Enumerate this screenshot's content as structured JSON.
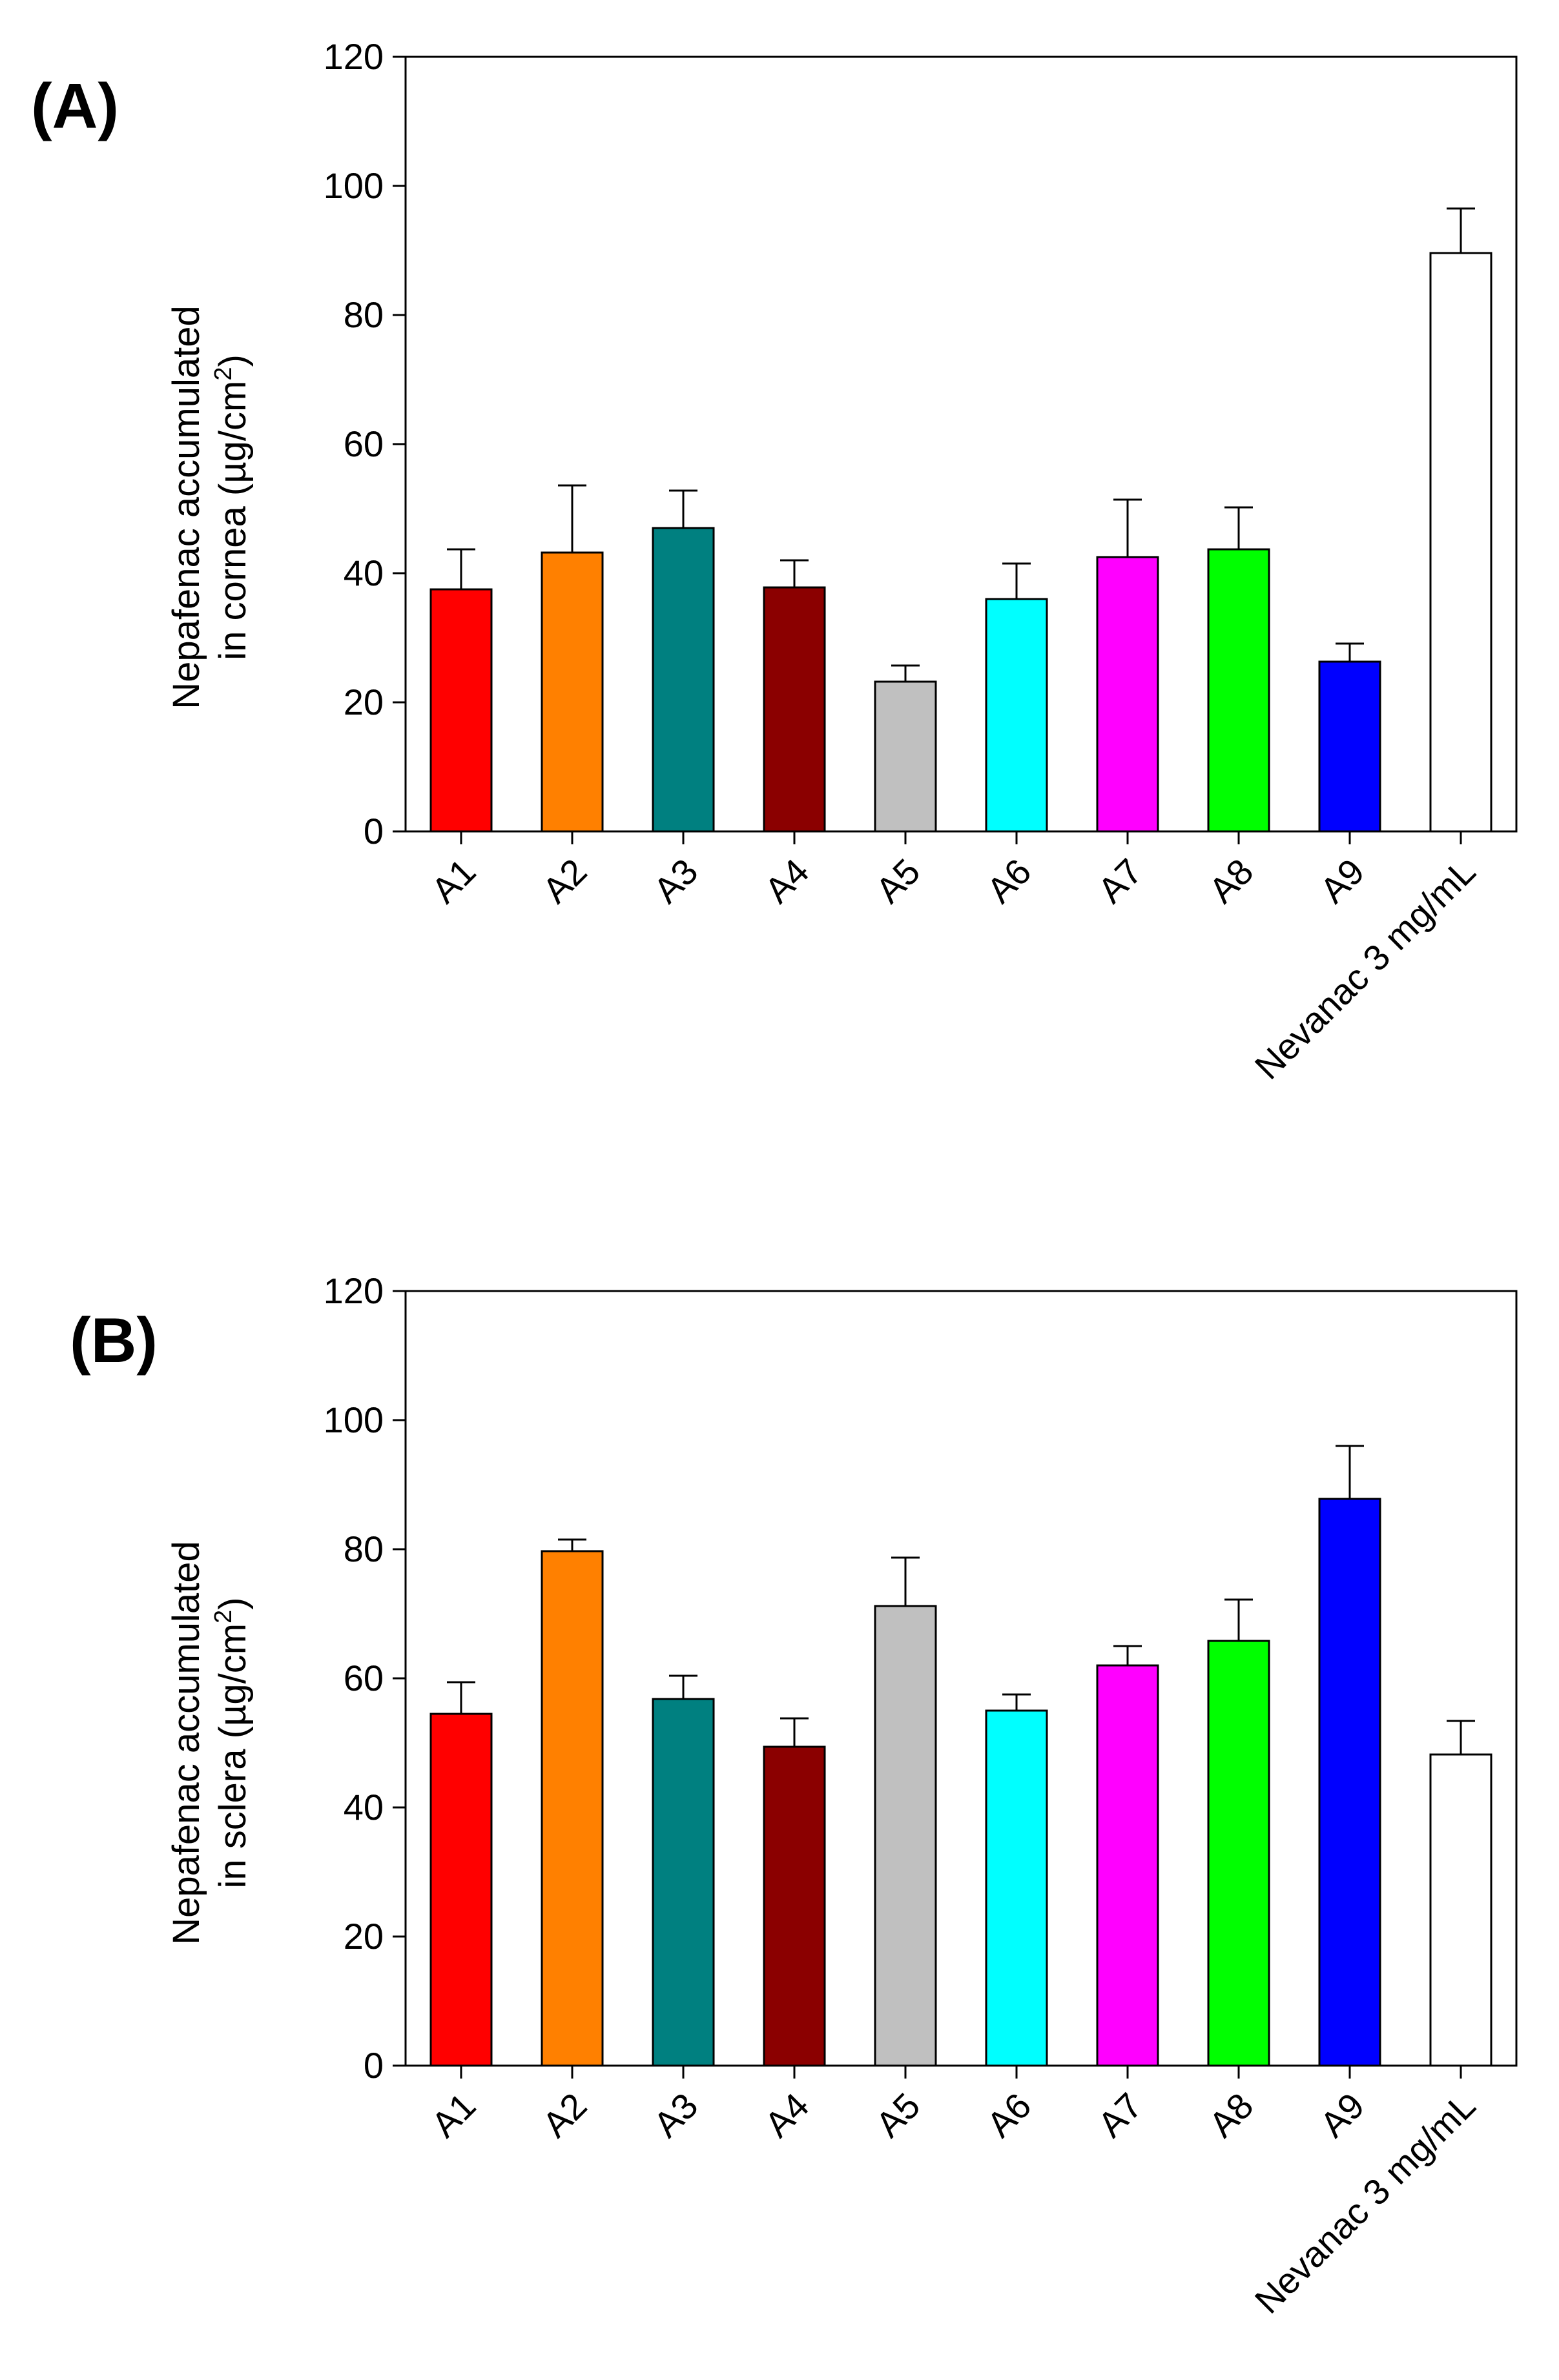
{
  "chart_data": [
    {
      "type": "bar",
      "panel_label": "(A)",
      "ylabel_line1": "Nepafenac accumulated",
      "ylabel_line2_prefix": "in cornea (µg/cm",
      "ylabel_sup": "2",
      "ylabel_line2_suffix": ")",
      "ylim": [
        0,
        120
      ],
      "yticks": [
        0,
        20,
        40,
        60,
        80,
        100,
        120
      ],
      "categories": [
        "A1",
        "A2",
        "A3",
        "A4",
        "A5",
        "A6",
        "A7",
        "A8",
        "A9",
        "Nevanac 3 mg/mL"
      ],
      "values": [
        37.5,
        43.2,
        47.0,
        37.8,
        23.2,
        36.0,
        42.5,
        43.7,
        26.3,
        89.6
      ],
      "errors": [
        6.2,
        10.4,
        5.8,
        4.2,
        2.5,
        5.5,
        8.9,
        6.5,
        2.8,
        6.9
      ],
      "colors": [
        "#ff0000",
        "#ff8000",
        "#008080",
        "#8b0000",
        "#c0c0c0",
        "#00ffff",
        "#ff00ff",
        "#00ff00",
        "#0000ff",
        "#ffffff"
      ],
      "grid": false,
      "legend": "none"
    },
    {
      "type": "bar",
      "panel_label": "(B)",
      "ylabel_line1": "Nepafenac accumulated",
      "ylabel_line2_prefix": "in sclera (µg/cm",
      "ylabel_sup": "2",
      "ylabel_line2_suffix": ")",
      "ylim": [
        0,
        120
      ],
      "yticks": [
        0,
        20,
        40,
        60,
        80,
        100,
        120
      ],
      "categories": [
        "A1",
        "A2",
        "A3",
        "A4",
        "A5",
        "A6",
        "A7",
        "A8",
        "A9",
        "Nevanac 3 mg/mL"
      ],
      "values": [
        54.5,
        79.7,
        56.8,
        49.4,
        71.2,
        55.0,
        62.0,
        65.8,
        87.8,
        48.2
      ],
      "errors": [
        4.9,
        1.8,
        3.6,
        4.4,
        7.5,
        2.5,
        3.0,
        6.4,
        8.2,
        5.2
      ],
      "colors": [
        "#ff0000",
        "#ff8000",
        "#008080",
        "#8b0000",
        "#c0c0c0",
        "#00ffff",
        "#ff00ff",
        "#00ff00",
        "#0000ff",
        "#ffffff"
      ],
      "grid": false,
      "legend": "none"
    }
  ]
}
